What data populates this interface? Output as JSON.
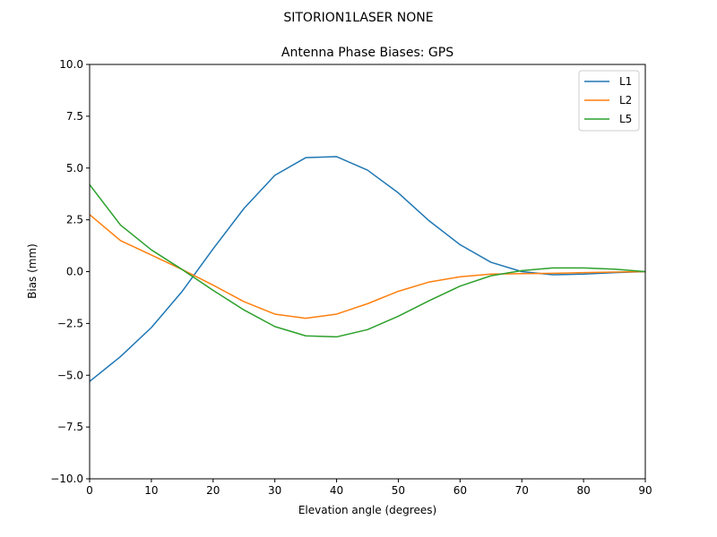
{
  "suptitle": "SITORION1LASER  NONE",
  "chart_data": {
    "type": "line",
    "title": "Antenna Phase Biases: GPS",
    "xlabel": "Elevation angle (degrees)",
    "ylabel": "Bias (mm)",
    "xlim": [
      0,
      90
    ],
    "ylim": [
      -10,
      10
    ],
    "xticks": [
      0,
      10,
      20,
      30,
      40,
      50,
      60,
      70,
      80,
      90
    ],
    "yticks": [
      -10.0,
      -7.5,
      -5.0,
      -2.5,
      0.0,
      2.5,
      5.0,
      7.5,
      10.0
    ],
    "xtick_labels": [
      "0",
      "10",
      "20",
      "30",
      "40",
      "50",
      "60",
      "70",
      "80",
      "90"
    ],
    "ytick_labels": [
      "−10.0",
      "−7.5",
      "−5.0",
      "−2.5",
      "0.0",
      "2.5",
      "5.0",
      "7.5",
      "10.0"
    ],
    "grid": false,
    "legend_position": "top-right",
    "x": [
      0,
      5,
      10,
      15,
      20,
      25,
      30,
      35,
      40,
      45,
      50,
      55,
      60,
      65,
      70,
      75,
      80,
      85,
      90
    ],
    "series": [
      {
        "name": "L1",
        "color": "#1f77b4",
        "values": [
          -5.3,
          -4.1,
          -2.7,
          -0.95,
          1.1,
          3.05,
          4.65,
          5.5,
          5.55,
          4.9,
          3.8,
          2.45,
          1.3,
          0.45,
          0.0,
          -0.15,
          -0.12,
          -0.05,
          0.0
        ]
      },
      {
        "name": "L2",
        "color": "#ff7f0e",
        "values": [
          2.75,
          1.5,
          0.8,
          0.1,
          -0.65,
          -1.45,
          -2.05,
          -2.25,
          -2.05,
          -1.55,
          -0.95,
          -0.5,
          -0.25,
          -0.12,
          -0.1,
          -0.08,
          -0.05,
          -0.02,
          0.0
        ]
      },
      {
        "name": "L5",
        "color": "#2ca02c",
        "values": [
          4.2,
          2.25,
          1.05,
          0.1,
          -0.9,
          -1.85,
          -2.65,
          -3.1,
          -3.15,
          -2.8,
          -2.15,
          -1.4,
          -0.7,
          -0.2,
          0.05,
          0.18,
          0.18,
          0.12,
          0.0
        ]
      }
    ]
  }
}
